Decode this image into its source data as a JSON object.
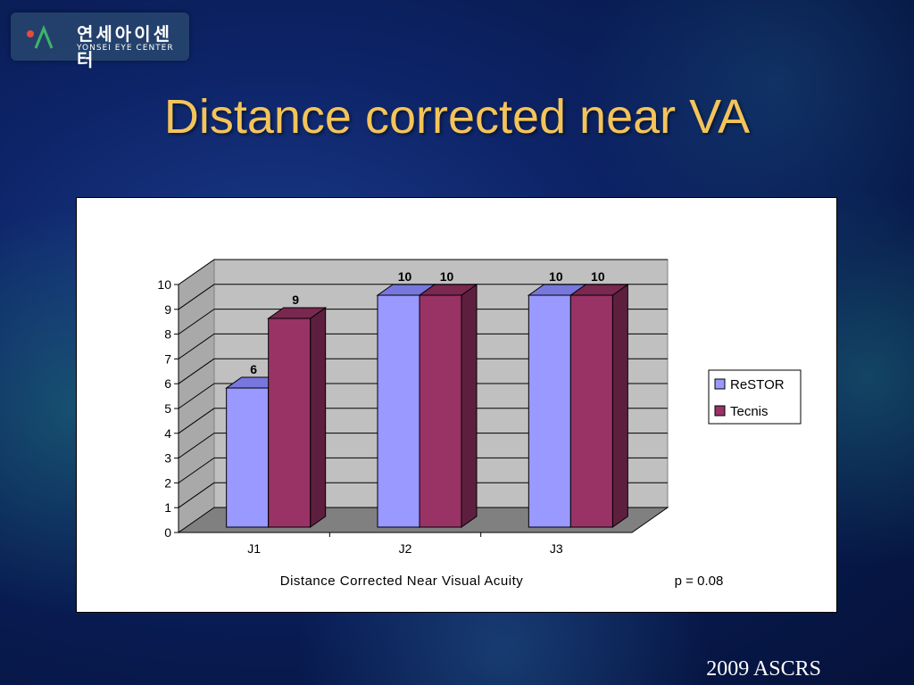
{
  "slide": {
    "logo_korean": "연세아이센터",
    "logo_english": "YONSEI EYE CENTER",
    "title": "Distance corrected near VA",
    "footer": "2009 ASCRS"
  },
  "chart_data": {
    "type": "bar",
    "style": "3d-clustered-column",
    "categories": [
      "J1",
      "J2",
      "J3"
    ],
    "series": [
      {
        "name": "ReSTOR",
        "values": [
          6,
          10,
          10
        ],
        "color": "#9999ff",
        "side_color": "#6b6bc0",
        "top_color": "#7777dd"
      },
      {
        "name": "Tecnis",
        "values": [
          9,
          10,
          10
        ],
        "color": "#993366",
        "side_color": "#5e1f3e",
        "top_color": "#7a2850"
      }
    ],
    "xlabel": "Distance Corrected Near Visual Acuity",
    "annotation": "p = 0.08",
    "ylim": [
      0,
      10
    ],
    "yticks": [
      0,
      1,
      2,
      3,
      4,
      5,
      6,
      7,
      8,
      9,
      10
    ],
    "grid": true,
    "legend_position": "right",
    "colors": {
      "wall": "#c0c0c0",
      "floor": "#808080",
      "wall_dark": "#a9a9a9"
    }
  }
}
